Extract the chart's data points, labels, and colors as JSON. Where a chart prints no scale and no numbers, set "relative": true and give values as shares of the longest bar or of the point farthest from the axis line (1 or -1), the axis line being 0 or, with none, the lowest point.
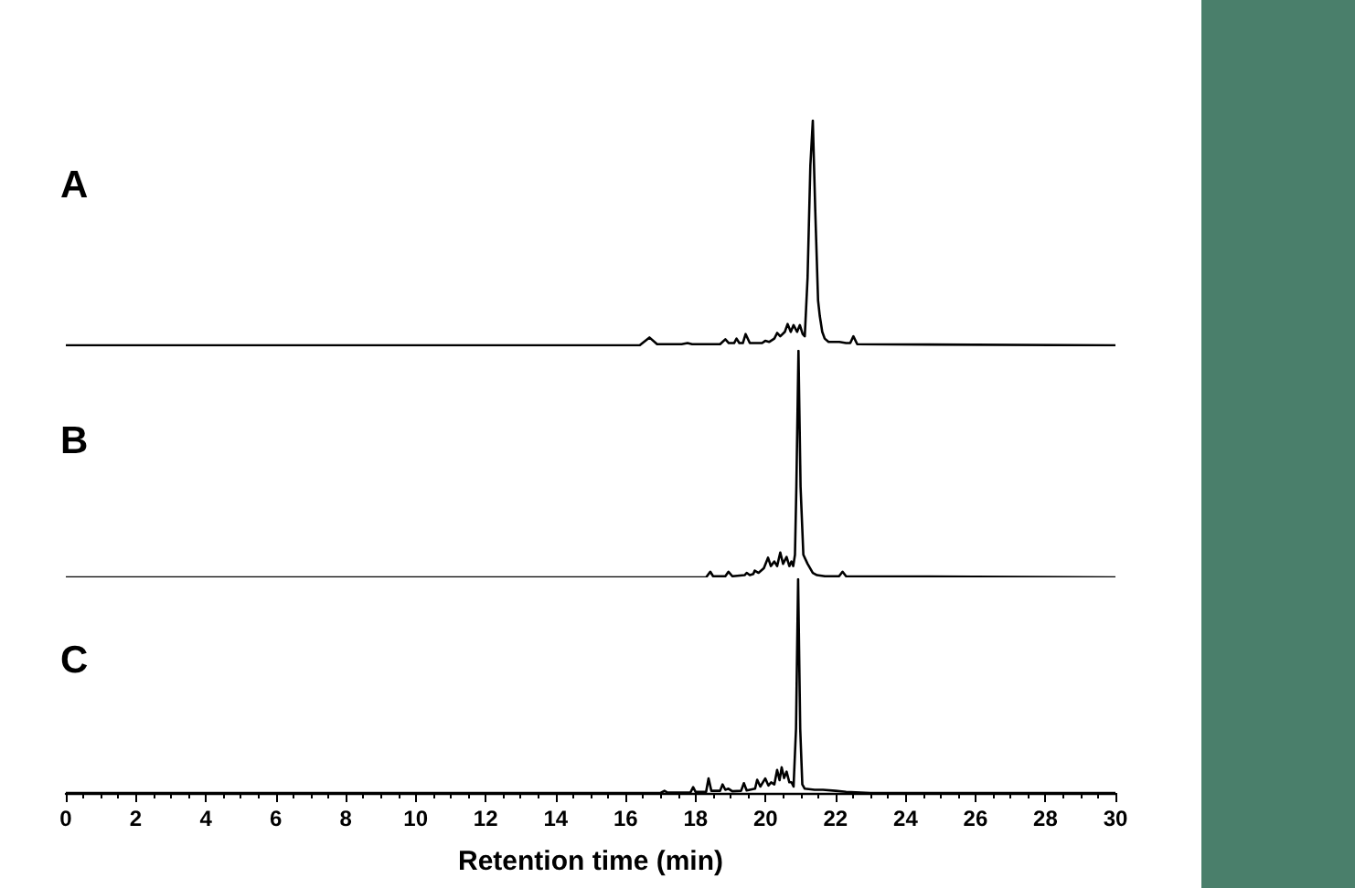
{
  "chart_data": [
    {
      "type": "line",
      "title": "A",
      "color": "#000000",
      "marker": "none",
      "relative": true,
      "xlim": [
        0,
        30
      ],
      "tick_labels": false,
      "x": [
        0,
        16.4,
        16.68,
        16.9,
        17.6,
        17.77,
        17.9,
        18.7,
        18.85,
        18.95,
        19.1,
        19.17,
        19.25,
        19.35,
        19.43,
        19.55,
        19.9,
        19.99,
        20.1,
        20.25,
        20.33,
        20.42,
        20.55,
        20.63,
        20.72,
        20.8,
        20.9,
        20.98,
        21.06,
        21.12,
        21.2,
        21.28,
        21.35,
        21.42,
        21.5,
        21.55,
        21.62,
        21.69,
        21.8,
        22.11,
        22.3,
        22.42,
        22.51,
        22.62,
        30
      ],
      "values": [
        0,
        0,
        0.035,
        0.005,
        0.005,
        0.01,
        0.005,
        0.005,
        0.027,
        0.01,
        0.01,
        0.03,
        0.01,
        0.01,
        0.05,
        0.01,
        0.01,
        0.02,
        0.015,
        0.03,
        0.055,
        0.04,
        0.06,
        0.095,
        0.06,
        0.09,
        0.06,
        0.09,
        0.05,
        0.04,
        0.3,
        0.8,
        1,
        0.6,
        0.2,
        0.13,
        0.06,
        0.03,
        0.015,
        0.015,
        0.01,
        0.01,
        0.04,
        0.005,
        0
      ]
    },
    {
      "type": "line",
      "title": "B",
      "color": "#000000",
      "marker": "none",
      "relative": true,
      "xlim": [
        0,
        30
      ],
      "tick_labels": false,
      "x": [
        0,
        18.3,
        18.42,
        18.5,
        18.85,
        18.94,
        19.05,
        19.4,
        19.46,
        19.55,
        19.65,
        19.69,
        19.8,
        19.95,
        20.07,
        20.15,
        20.25,
        20.33,
        20.42,
        20.5,
        20.6,
        20.68,
        20.74,
        20.79,
        20.84,
        20.88,
        20.94,
        21.0,
        21.08,
        21.2,
        21.35,
        21.47,
        21.7,
        22.1,
        22.2,
        22.3,
        30
      ],
      "values": [
        0,
        0,
        0.025,
        0.005,
        0.005,
        0.025,
        0.005,
        0.01,
        0.02,
        0.01,
        0.015,
        0.03,
        0.02,
        0.04,
        0.087,
        0.05,
        0.07,
        0.05,
        0.11,
        0.06,
        0.09,
        0.05,
        0.07,
        0.05,
        0.1,
        0.4,
        1,
        0.4,
        0.1,
        0.06,
        0.02,
        0.01,
        0.005,
        0.005,
        0.025,
        0.005,
        0
      ]
    },
    {
      "type": "line",
      "title": "C",
      "xlabel": "Retention time (min)",
      "color": "#000000",
      "marker": "none",
      "relative": true,
      "xlim": [
        0,
        30
      ],
      "xticks": [
        0,
        2,
        4,
        6,
        8,
        10,
        12,
        14,
        16,
        18,
        20,
        22,
        24,
        26,
        28,
        30
      ],
      "tick_labels": "x",
      "x": [
        0,
        17.0,
        17.11,
        17.2,
        17.85,
        17.93,
        18.0,
        18.3,
        18.37,
        18.45,
        18.7,
        18.77,
        18.85,
        18.94,
        19.05,
        19.3,
        19.38,
        19.46,
        19.7,
        19.76,
        19.85,
        19.99,
        20.08,
        20.16,
        20.25,
        20.33,
        20.4,
        20.46,
        20.53,
        20.6,
        20.68,
        20.74,
        20.8,
        20.87,
        20.93,
        20.99,
        21.05,
        21.12,
        21.4,
        21.64,
        22.0,
        22.3,
        23,
        30
      ],
      "values": [
        0,
        0,
        0.01,
        0.002,
        0.002,
        0.027,
        0.005,
        0.005,
        0.068,
        0.01,
        0.01,
        0.04,
        0.015,
        0.02,
        0.008,
        0.01,
        0.046,
        0.012,
        0.02,
        0.062,
        0.03,
        0.068,
        0.035,
        0.05,
        0.04,
        0.108,
        0.06,
        0.12,
        0.07,
        0.1,
        0.05,
        0.05,
        0.03,
        0.3,
        1,
        0.3,
        0.04,
        0.02,
        0.015,
        0.015,
        0.01,
        0.005,
        0,
        0
      ]
    }
  ]
}
